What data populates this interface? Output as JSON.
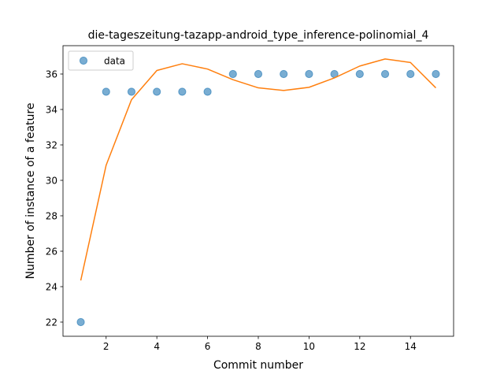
{
  "chart_data": {
    "type": "scatter",
    "title": "die-tageszeitung-tazapp-android_type_inference-polinomial_4",
    "xlabel": "Commit number",
    "ylabel": "Number of instance of a feature",
    "xlim": [
      0.3,
      15.7
    ],
    "ylim": [
      21.2,
      37.6
    ],
    "xticks": [
      2,
      4,
      6,
      8,
      10,
      12,
      14
    ],
    "yticks": [
      22,
      24,
      26,
      28,
      30,
      32,
      34,
      36
    ],
    "legend": {
      "position": "top-left",
      "entries": [
        "data"
      ]
    },
    "grid": false,
    "series": [
      {
        "name": "data",
        "kind": "scatter",
        "color": "#1f77b4",
        "x": [
          1,
          2,
          3,
          4,
          5,
          6,
          7,
          8,
          9,
          10,
          11,
          12,
          13,
          14,
          15
        ],
        "y": [
          22,
          35,
          35,
          35,
          35,
          35,
          36,
          36,
          36,
          36,
          36,
          36,
          36,
          36,
          36
        ]
      },
      {
        "kind": "line",
        "color": "#ff7f0e",
        "x": [
          1,
          2,
          3,
          4,
          5,
          6,
          7,
          8,
          9,
          10,
          11,
          12,
          13,
          14,
          15
        ],
        "y": [
          24.35,
          30.85,
          34.55,
          36.2,
          36.58,
          36.28,
          35.68,
          35.22,
          35.07,
          35.25,
          35.78,
          36.45,
          36.85,
          36.65,
          35.22
        ]
      }
    ]
  }
}
